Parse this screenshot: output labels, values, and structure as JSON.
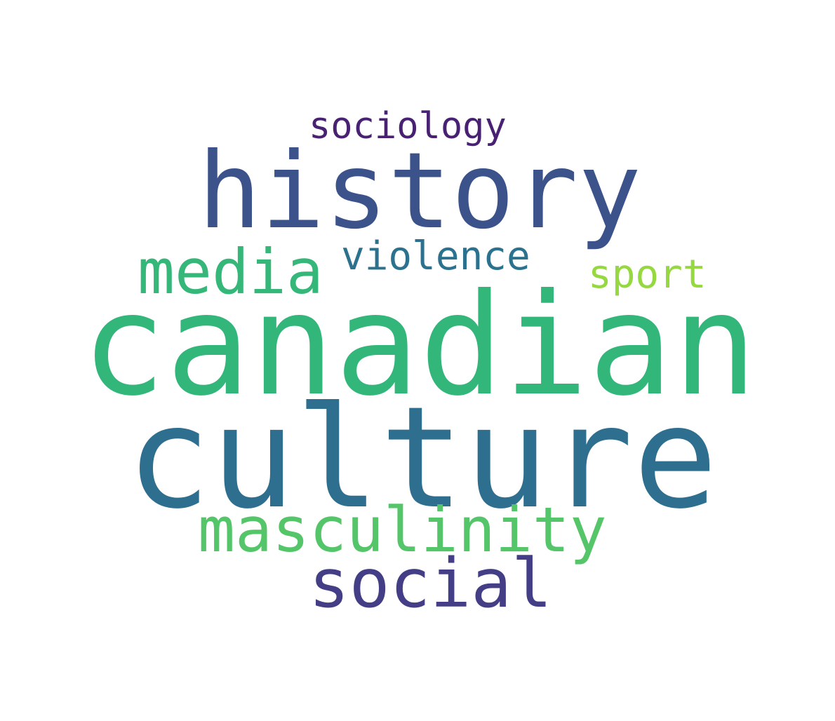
{
  "word_cloud": {
    "words": [
      {
        "text": "sociology",
        "color": "#482173"
      },
      {
        "text": "history",
        "color": "#3b528b"
      },
      {
        "text": "media",
        "color": "#35b779"
      },
      {
        "text": "violence",
        "color": "#2c728e"
      },
      {
        "text": "sport",
        "color": "#95d840"
      },
      {
        "text": "canadian",
        "color": "#32b67a"
      },
      {
        "text": "culture",
        "color": "#2e6e8e"
      },
      {
        "text": "masculinity",
        "color": "#54c568"
      },
      {
        "text": "social",
        "color": "#433e85"
      }
    ]
  }
}
